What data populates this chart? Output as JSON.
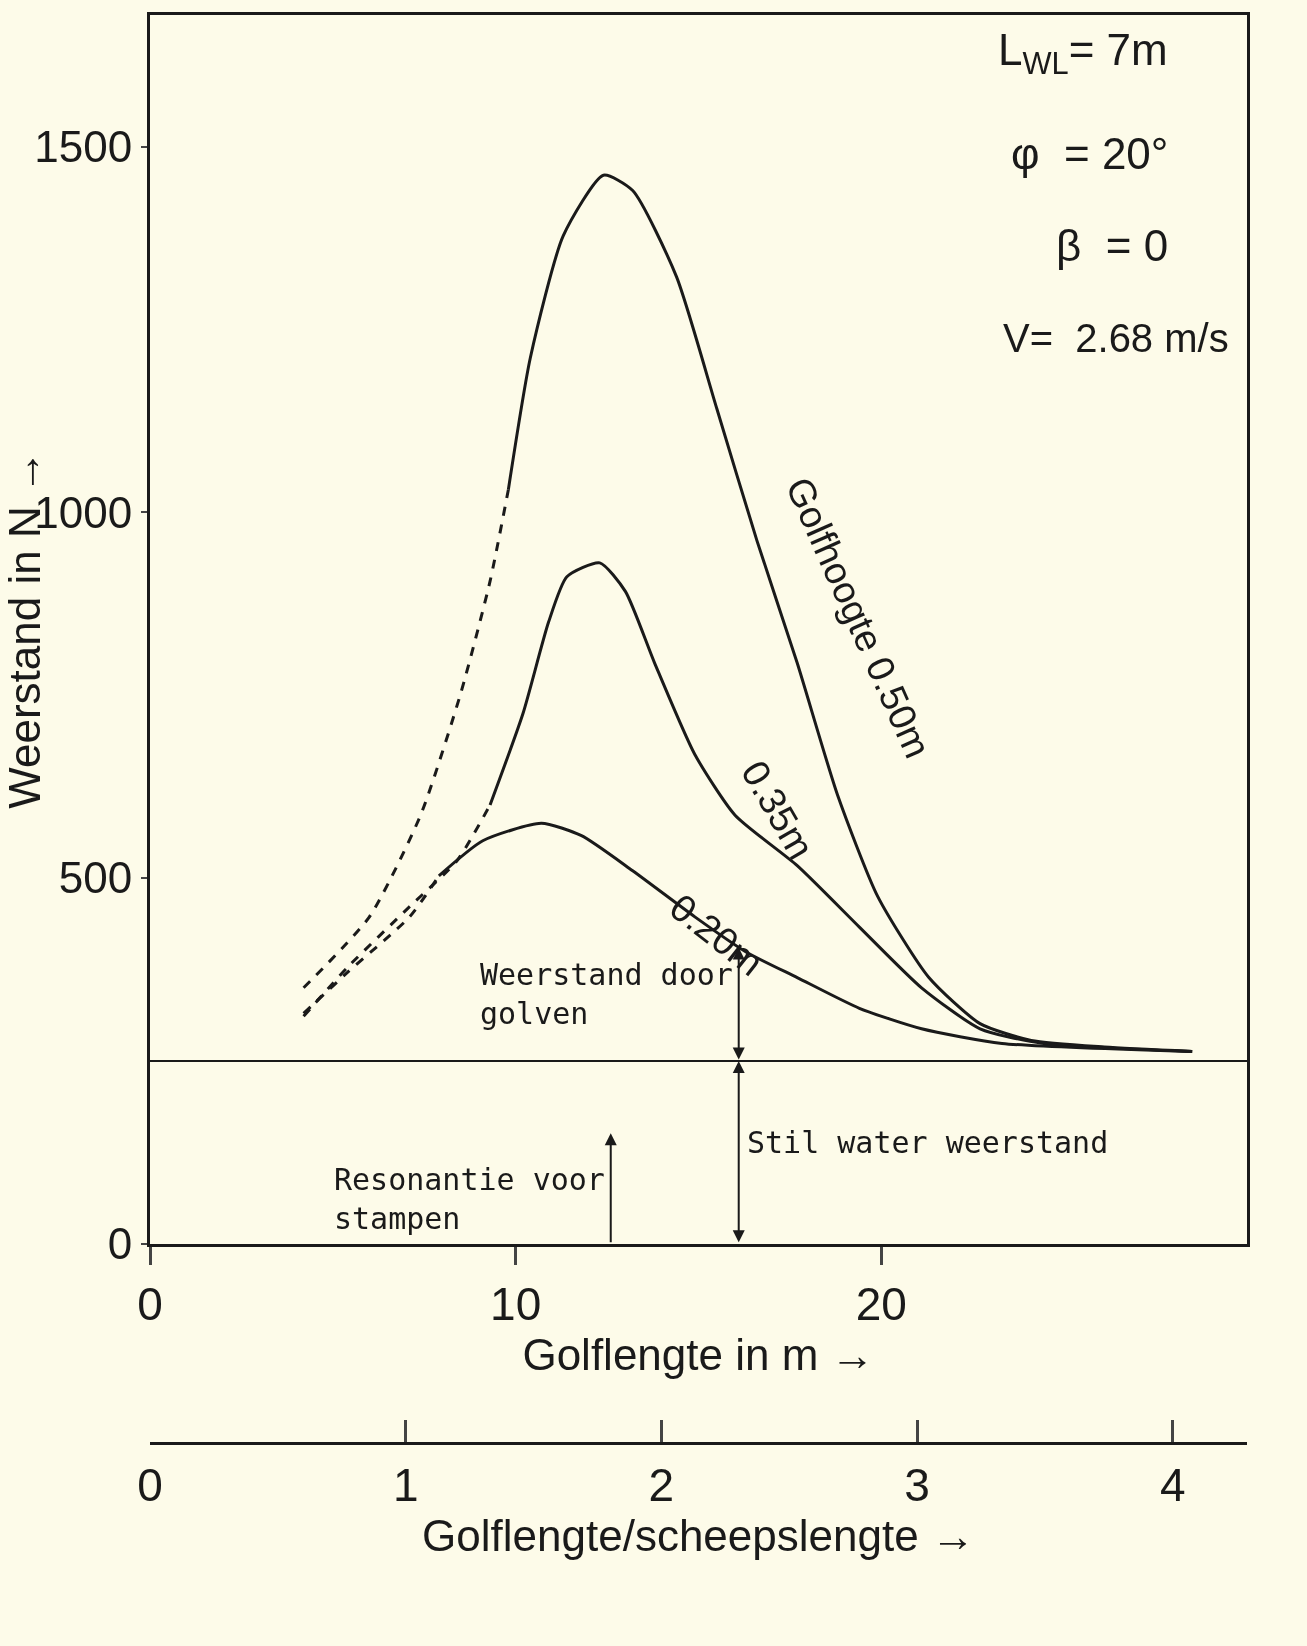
{
  "chart_data": {
    "type": "line",
    "xlabel": "Golflengte in m →",
    "ylabel": "Weerstand in N →",
    "x2label": "Golflengte/scheepslengte →",
    "xlim": [
      0,
      30
    ],
    "xticks": [
      0,
      10,
      20
    ],
    "ylim": [
      0,
      1680
    ],
    "yticks": [
      0,
      500,
      1000,
      1500
    ],
    "x2lim": [
      0,
      4.29
    ],
    "x2ticks": [
      0,
      1,
      2,
      3,
      4
    ],
    "series": [
      {
        "color": "#1a1a1a",
        "line_style": "dashed",
        "x": [
          4.2,
          6.0,
          7.4,
          8.5,
          9.3,
          9.8
        ],
        "values": [
          350,
          447,
          586,
          753,
          906,
          1031
        ]
      },
      {
        "color": "#1a1a1a",
        "line_style": "solid",
        "x": [
          9.8,
          10.4,
          11.3,
          12.4,
          13.2,
          14.4,
          15.5,
          16.6,
          17.7,
          18.8,
          19.9,
          21.3,
          22.7,
          24.1,
          26.1,
          28.5
        ],
        "values": [
          1031,
          1211,
          1378,
          1461,
          1440,
          1322,
          1142,
          961,
          794,
          614,
          475,
          364,
          301,
          278,
          269,
          263
        ]
      },
      {
        "color": "#1a1a1a",
        "line_style": "dashed",
        "x": [
          4.2,
          5.4,
          7.1,
          8.4,
          9.3
        ],
        "values": [
          311,
          378,
          461,
          524,
          600
        ]
      },
      {
        "color": "#1a1a1a",
        "line_style": "solid",
        "x": [
          9.3,
          10.2,
          10.9,
          11.4,
          12.3,
          13.0,
          13.8,
          14.9,
          16.0,
          17.7,
          19.4,
          21.1,
          22.7,
          24.4,
          28.5
        ],
        "values": [
          600,
          725,
          850,
          912,
          931,
          892,
          794,
          669,
          586,
          517,
          433,
          350,
          294,
          274,
          263
        ]
      },
      {
        "color": "#1a1a1a",
        "line_style": "dashed",
        "x": [
          4.2,
          5.4,
          7.1,
          7.9
        ],
        "values": [
          315,
          371,
          447,
          503
        ]
      },
      {
        "color": "#1a1a1a",
        "line_style": "solid",
        "x": [
          7.9,
          9.1,
          10.7,
          11.8,
          13.2,
          14.9,
          16.3,
          17.7,
          19.4,
          21.1,
          23.3,
          28.5
        ],
        "values": [
          503,
          551,
          575,
          558,
          510,
          447,
          399,
          364,
          322,
          294,
          274,
          263
        ]
      }
    ],
    "ref_lines": [
      {
        "axis": "y",
        "value": 250
      },
      {
        "axis": "x",
        "value": 12.6,
        "label": "Resonantie voor\nstampen"
      }
    ],
    "annotations": [
      "L$_{WL}$= 7m",
      "φ  = 20°",
      "β  = 0",
      "V=  2.68 m/s",
      {
        "text": "Golfhoogte 0.50m",
        "x": 17.3,
        "y": 870
      },
      {
        "text": "0.35m",
        "x": 15.8,
        "y": 600
      },
      {
        "text": "0.20m",
        "x": 14.0,
        "y": 480
      },
      {
        "text": "Weerstand door\ngolven",
        "x": 16.1,
        "y": 405
      },
      {
        "text": "Stil water weerstand",
        "x": 16.1,
        "y": 250
      }
    ]
  }
}
